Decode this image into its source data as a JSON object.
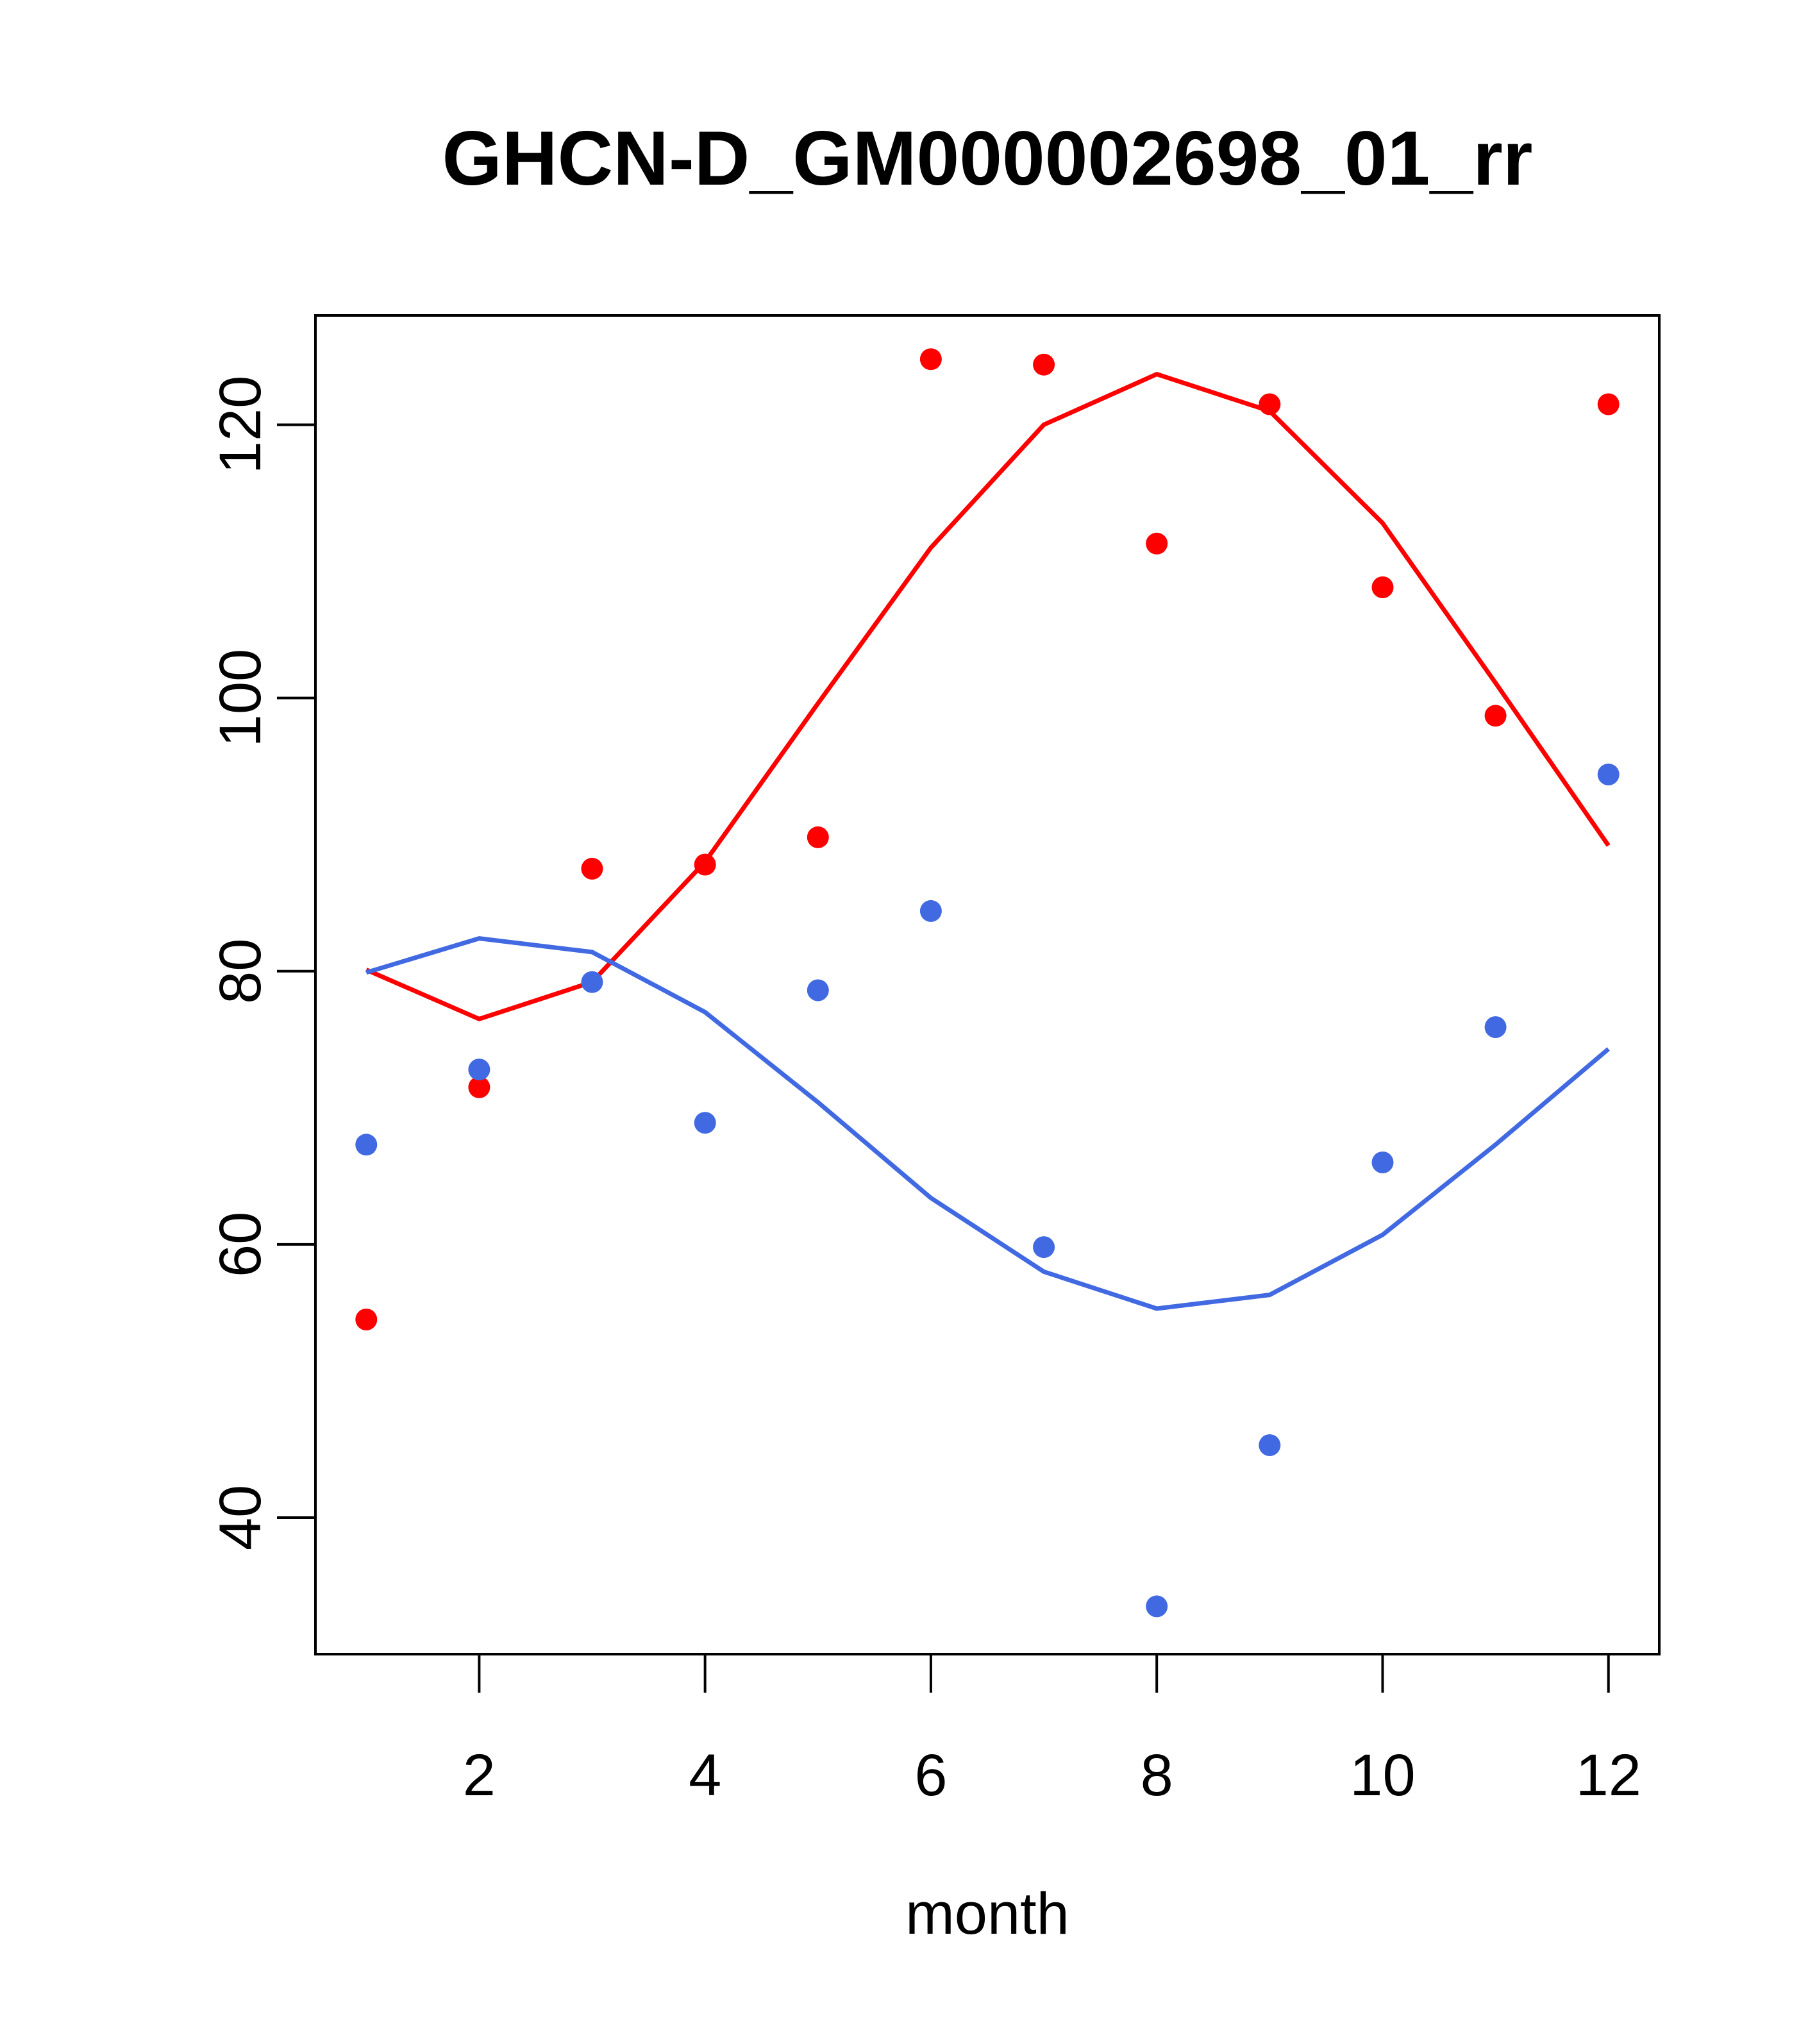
{
  "chart_data": {
    "type": "scatter",
    "title": "GHCN-D_GM000002698_01_rr",
    "xlabel": "month",
    "ylabel": "",
    "xlim": [
      0.55,
      12.45
    ],
    "ylim": [
      30,
      128
    ],
    "x_ticks": [
      2,
      4,
      6,
      8,
      10,
      12
    ],
    "y_ticks": [
      40,
      60,
      80,
      100,
      120
    ],
    "x_tick_labels": [
      "2",
      "4",
      "6",
      "8",
      "10",
      "12"
    ],
    "y_tick_labels": [
      "40",
      "60",
      "80",
      "100",
      "120"
    ],
    "grid": false,
    "legend": "none",
    "series": [
      {
        "color": "#ff0000",
        "points": {
          "x": [
            1,
            2,
            3,
            4,
            5,
            6,
            7,
            8,
            9,
            10,
            11,
            12
          ],
          "y": [
            54.5,
            71.5,
            87.5,
            87.8,
            89.8,
            124.8,
            124.4,
            111.3,
            121.5,
            108.1,
            98.7,
            121.5
          ]
        },
        "fit": {
          "x": [
            1,
            2,
            3,
            4,
            5,
            6,
            7,
            8,
            9,
            10,
            11,
            12
          ],
          "y": [
            80.1,
            76.5,
            79.2,
            88.0,
            99.6,
            111.0,
            120.0,
            123.7,
            121.0,
            112.8,
            101.1,
            89.2
          ]
        }
      },
      {
        "color": "#4169e1",
        "points": {
          "x": [
            1,
            2,
            3,
            4,
            5,
            6,
            7,
            8,
            9,
            10,
            11,
            12
          ],
          "y": [
            67.3,
            72.8,
            79.2,
            68.9,
            78.6,
            84.4,
            59.8,
            33.5,
            45.3,
            66.0,
            75.9,
            94.4
          ]
        },
        "fit": {
          "x": [
            1,
            2,
            3,
            4,
            5,
            6,
            7,
            8,
            9,
            10,
            11,
            12
          ],
          "y": [
            79.9,
            82.4,
            81.4,
            77.0,
            70.4,
            63.4,
            58.0,
            55.3,
            56.3,
            60.7,
            67.3,
            74.3
          ]
        }
      }
    ]
  }
}
